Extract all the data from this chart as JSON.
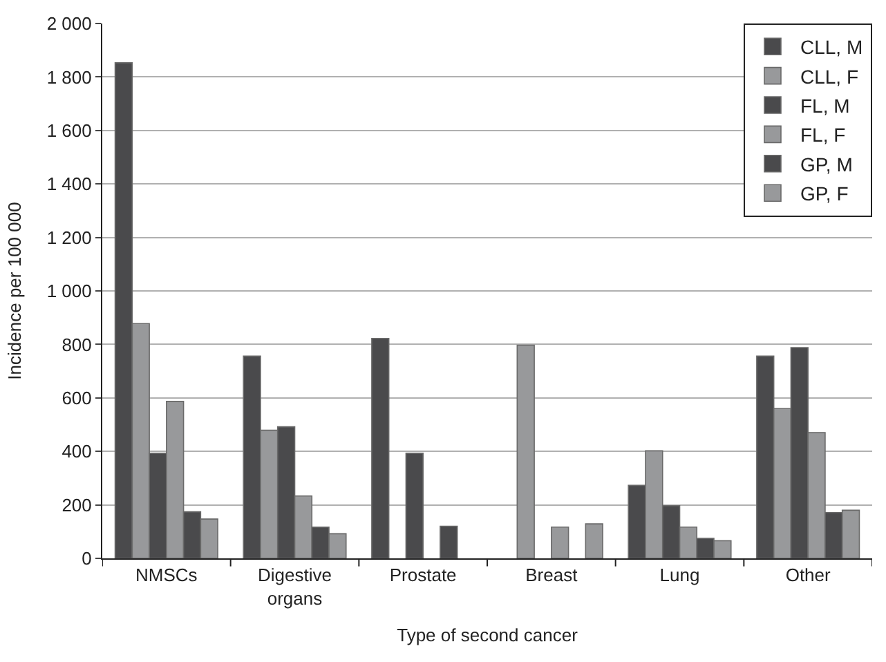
{
  "chart_data": {
    "type": "bar",
    "xlabel": "Type of second cancer",
    "ylabel": "Incidence per 100 000",
    "categories": [
      "NMSCs",
      "Digestive\norgans",
      "Prostate",
      "Breast",
      "Lung",
      "Other"
    ],
    "series": [
      {
        "name": "CLL, M",
        "color": "#4a4a4c",
        "values": [
          1853,
          756,
          822,
          null,
          273,
          756
        ]
      },
      {
        "name": "CLL, F",
        "color": "#98999b",
        "values": [
          878,
          479,
          null,
          797,
          402,
          560
        ]
      },
      {
        "name": "FL, M",
        "color": "#4a4a4c",
        "values": [
          393,
          492,
          393,
          null,
          197,
          788
        ]
      },
      {
        "name": "FL, F",
        "color": "#98999b",
        "values": [
          587,
          233,
          null,
          117,
          117,
          470
        ]
      },
      {
        "name": "GP, M",
        "color": "#4a4a4c",
        "values": [
          174,
          117,
          120,
          null,
          75,
          171
        ]
      },
      {
        "name": "GP, F",
        "color": "#98999b",
        "values": [
          147,
          92,
          null,
          129,
          66,
          180
        ]
      }
    ],
    "ylim": [
      0,
      2000
    ],
    "yticks": [
      0,
      {
        "value": 200,
        "label": "200"
      },
      {
        "value": 400,
        "label": "400"
      },
      {
        "value": 600,
        "label": "600"
      },
      {
        "value": 800,
        "label": "800"
      },
      {
        "value": 1000,
        "label": "1 000"
      },
      {
        "value": 1200,
        "label": "1 200"
      },
      {
        "value": 1400,
        "label": "1 400"
      },
      {
        "value": 1600,
        "label": "1 600"
      },
      {
        "value": 1800,
        "label": "1 800"
      },
      {
        "value": 2000,
        "label": "2 000"
      }
    ],
    "grid": "y",
    "legend": "top right"
  }
}
